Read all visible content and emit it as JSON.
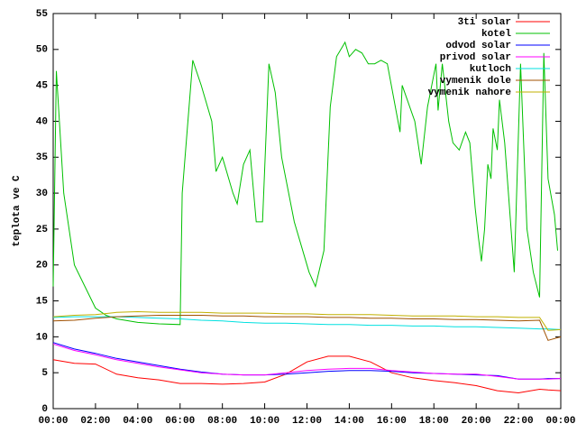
{
  "chart_data": {
    "type": "line",
    "y_label": "teplota ve C",
    "xlim": [
      0,
      24
    ],
    "xticks": [
      {
        "value": 0,
        "label": "00:00"
      },
      {
        "value": 2,
        "label": "02:00"
      },
      {
        "value": 4,
        "label": "04:00"
      },
      {
        "value": 6,
        "label": "06:00"
      },
      {
        "value": 8,
        "label": "08:00"
      },
      {
        "value": 10,
        "label": "10:00"
      },
      {
        "value": 12,
        "label": "12:00"
      },
      {
        "value": 14,
        "label": "14:00"
      },
      {
        "value": 16,
        "label": "16:00"
      },
      {
        "value": 18,
        "label": "18:00"
      },
      {
        "value": 20,
        "label": "20:00"
      },
      {
        "value": 22,
        "label": "22:00"
      },
      {
        "value": 24,
        "label": "00:00"
      }
    ],
    "ylim": [
      0,
      55
    ],
    "yticks": [
      0,
      5,
      10,
      15,
      20,
      25,
      30,
      35,
      40,
      45,
      50,
      55
    ],
    "legend": "top-right",
    "x": [
      0,
      1,
      2,
      3,
      4,
      5,
      6,
      7,
      8,
      9,
      10,
      11,
      12,
      13,
      14,
      15,
      16,
      17,
      18,
      19,
      20,
      21,
      22,
      23,
      23.4,
      24
    ],
    "series": [
      {
        "name": "3ti solar",
        "color": "#ff0000",
        "values": [
          6.8,
          6.3,
          6.2,
          4.8,
          4.3,
          4.0,
          3.5,
          3.5,
          3.4,
          3.5,
          3.7,
          4.8,
          6.5,
          7.3,
          7.3,
          6.5,
          5.0,
          4.3,
          3.9,
          3.6,
          3.2,
          2.5,
          2.2,
          2.7,
          2.6,
          2.5
        ]
      },
      {
        "name": "kotel",
        "color": "#00c000",
        "x": [
          0,
          0.15,
          0.5,
          1,
          1.5,
          2,
          2.5,
          3,
          4,
          5,
          6,
          6.1,
          6.6,
          7,
          7.5,
          7.7,
          8,
          8.5,
          8.7,
          9,
          9.3,
          9.6,
          9.9,
          10.2,
          10.5,
          10.8,
          11.4,
          11.8,
          12.1,
          12.4,
          12.8,
          13.1,
          13.4,
          13.8,
          14,
          14.3,
          14.6,
          14.9,
          15.2,
          15.5,
          15.8,
          16.4,
          16.5,
          17.1,
          17.4,
          17.7,
          18.1,
          18.2,
          18.4,
          18.7,
          18.9,
          19.2,
          19.5,
          19.7,
          19.95,
          20.1,
          20.25,
          20.4,
          20.55,
          20.7,
          20.8,
          21,
          21.1,
          21.35,
          21.8,
          22.1,
          22.4,
          22.7,
          23,
          23.2,
          23.4,
          23.7,
          23.85
        ],
        "values": [
          17,
          47,
          30,
          20,
          17,
          14,
          13,
          12.5,
          12,
          11.8,
          11.7,
          30,
          48.5,
          45,
          40,
          33,
          35,
          30,
          28.5,
          34,
          36,
          26,
          26,
          48,
          44,
          35,
          26,
          22,
          19,
          17,
          22,
          42,
          49,
          51,
          49,
          50,
          49.5,
          48,
          48,
          48.5,
          48,
          38.5,
          45,
          40,
          34,
          42,
          48,
          41.5,
          48,
          40,
          37,
          36,
          38.5,
          37,
          28,
          24,
          20.5,
          25,
          34,
          32,
          39,
          36,
          43,
          37,
          19,
          48,
          25,
          19,
          15.5,
          49.5,
          32,
          27,
          22
        ]
      },
      {
        "name": "odvod solar",
        "color": "#0000ff",
        "values": [
          9.2,
          8.3,
          7.7,
          7.0,
          6.5,
          6.0,
          5.5,
          5.1,
          4.8,
          4.7,
          4.7,
          4.8,
          5.0,
          5.2,
          5.3,
          5.3,
          5.2,
          5.0,
          4.9,
          4.8,
          4.7,
          4.6,
          4.1,
          4.1,
          4.2,
          4.2
        ]
      },
      {
        "name": "privod solar",
        "color": "#ff00ff",
        "values": [
          9.0,
          8.1,
          7.5,
          6.8,
          6.3,
          5.8,
          5.4,
          5.0,
          4.8,
          4.7,
          4.7,
          5.0,
          5.3,
          5.5,
          5.6,
          5.6,
          5.3,
          5.1,
          4.9,
          4.8,
          4.8,
          4.5,
          4.1,
          4.1,
          4.1,
          4.2
        ]
      },
      {
        "name": "kutloch",
        "color": "#00e0e0",
        "values": [
          12.7,
          12.8,
          12.8,
          12.8,
          12.7,
          12.6,
          12.5,
          12.3,
          12.2,
          12.0,
          11.9,
          11.9,
          11.8,
          11.7,
          11.7,
          11.6,
          11.6,
          11.5,
          11.5,
          11.4,
          11.4,
          11.3,
          11.2,
          11.1,
          11.1,
          11.0
        ]
      },
      {
        "name": "vymenik dole",
        "color": "#a05000",
        "values": [
          12.2,
          12.3,
          12.6,
          12.8,
          12.9,
          13.0,
          13.0,
          13.0,
          12.9,
          12.9,
          12.8,
          12.8,
          12.8,
          12.7,
          12.7,
          12.6,
          12.6,
          12.5,
          12.5,
          12.4,
          12.4,
          12.3,
          12.2,
          12.3,
          9.5,
          10.0
        ]
      },
      {
        "name": "vymenik nahore",
        "color": "#c0b000",
        "values": [
          12.8,
          13.0,
          13.1,
          13.4,
          13.5,
          13.4,
          13.4,
          13.4,
          13.3,
          13.3,
          13.3,
          13.2,
          13.2,
          13.1,
          13.1,
          13.1,
          13.0,
          12.9,
          12.9,
          12.9,
          12.8,
          12.8,
          12.7,
          12.7,
          10.9,
          11.0
        ]
      }
    ]
  }
}
